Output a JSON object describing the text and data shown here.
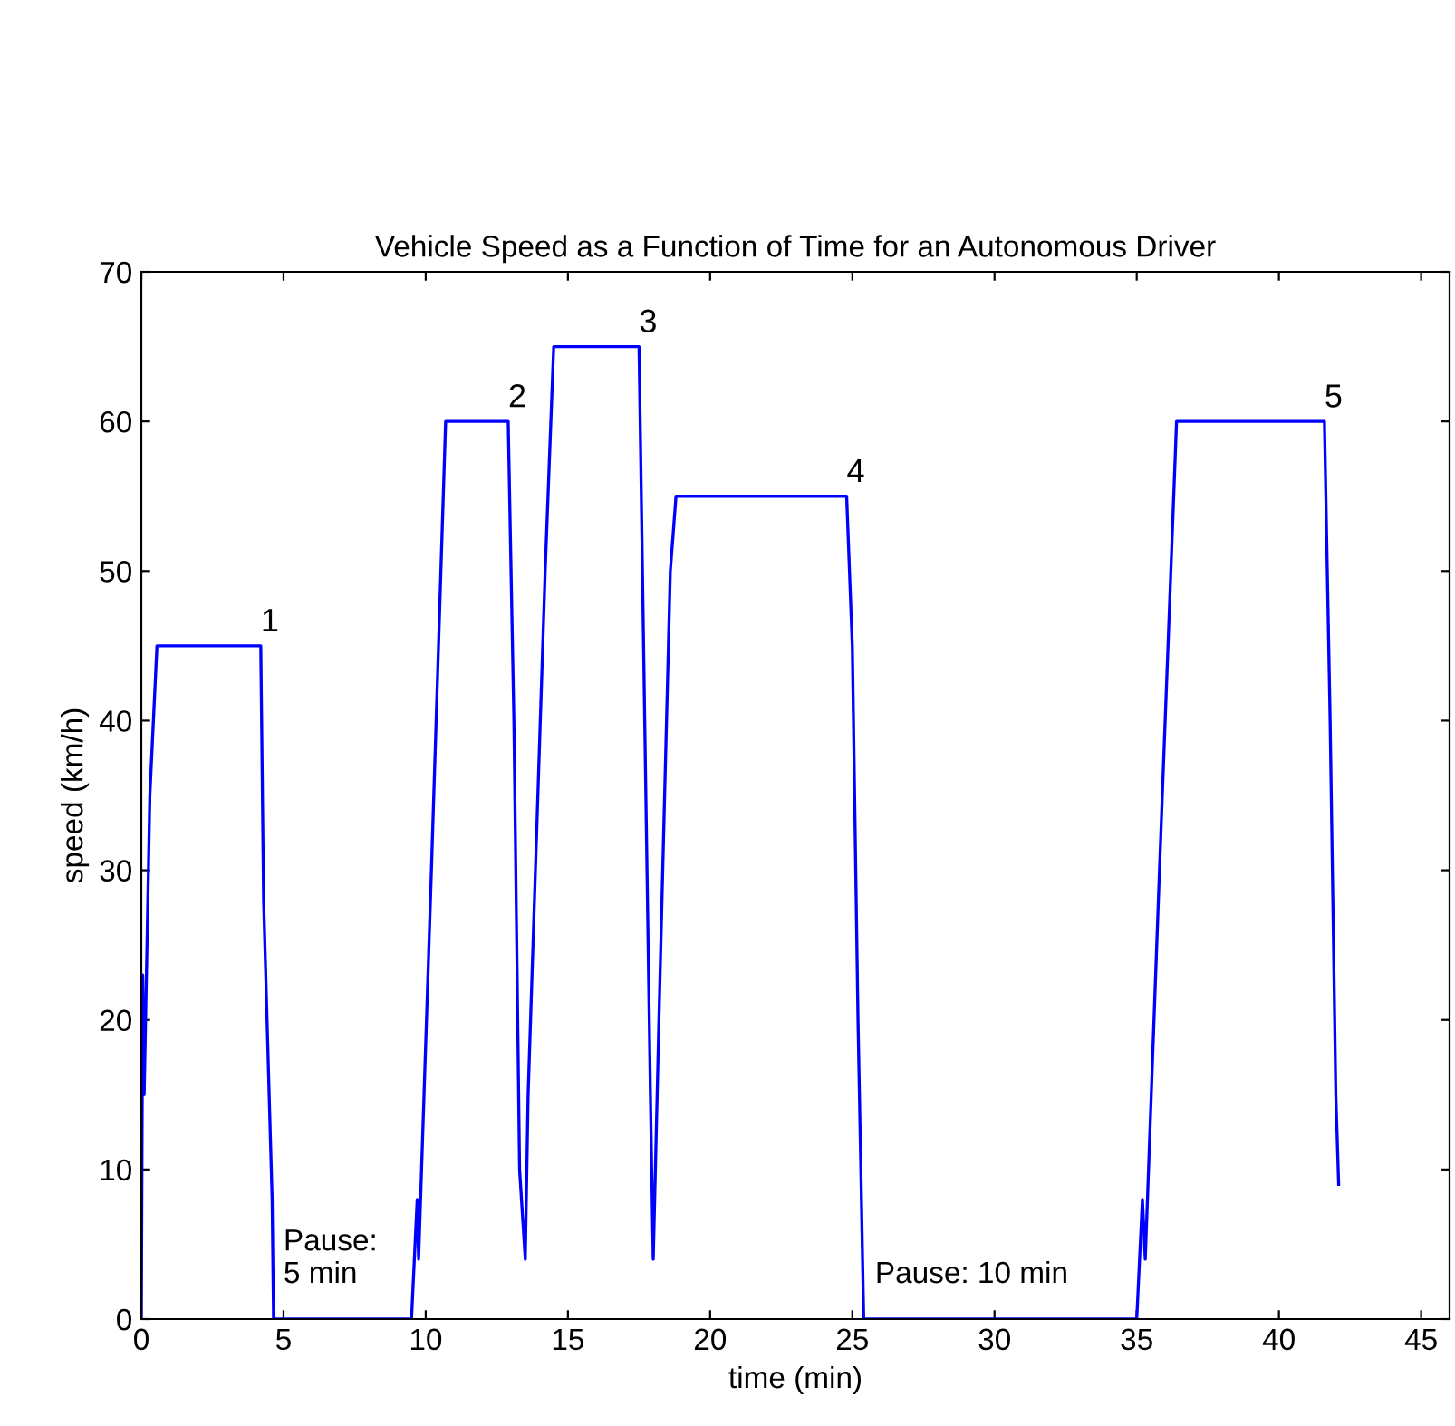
{
  "chart_data": {
    "type": "line",
    "title": "Vehicle Speed as a Function of Time for an Autonomous Driver",
    "xlabel": "time (min)",
    "ylabel": "speed (km/h)",
    "series": [
      {
        "color": "#0000ff",
        "x": [
          0,
          0.05,
          0.1,
          0.3,
          0.55,
          4.2,
          4.3,
          4.6,
          4.65,
          9.5,
          9.7,
          9.75,
          10.2,
          10.7,
          12.9,
          13.1,
          13.3,
          13.5,
          13.6,
          14.2,
          14.5,
          17.5,
          17.7,
          17.9,
          18.0,
          18.2,
          18.6,
          18.8,
          24.8,
          25.0,
          25.2,
          25.4,
          35.0,
          35.2,
          35.3,
          35.8,
          36.4,
          41.6,
          41.8,
          42.0,
          42.1
        ],
        "values": [
          0,
          23,
          15,
          35,
          45,
          45,
          28,
          8,
          0,
          0,
          8,
          4,
          30,
          60,
          60,
          40,
          10,
          4,
          15,
          50,
          65,
          65,
          40,
          15,
          4,
          20,
          50,
          55,
          55,
          45,
          20,
          0,
          0,
          8,
          4,
          30,
          60,
          60,
          40,
          15,
          9
        ]
      }
    ],
    "annotations": [
      {
        "text": "1",
        "x": 4.2,
        "y": 45
      },
      {
        "text": "2",
        "x": 12.9,
        "y": 60
      },
      {
        "text": "3",
        "x": 17.5,
        "y": 65
      },
      {
        "text": "4",
        "x": 24.8,
        "y": 55
      },
      {
        "text": "5",
        "x": 41.6,
        "y": 60
      },
      "Pause:\n5 min",
      "Pause: 10 min"
    ],
    "xlim": [
      0,
      46
    ],
    "xticks": [
      0,
      5,
      10,
      15,
      20,
      25,
      30,
      35,
      40,
      45
    ],
    "ylim": [
      0,
      70
    ],
    "yticks": [
      0,
      10,
      20,
      30,
      40,
      50,
      60,
      70
    ],
    "grid": false,
    "legend": false,
    "line_style": "solid",
    "marker": "none"
  }
}
